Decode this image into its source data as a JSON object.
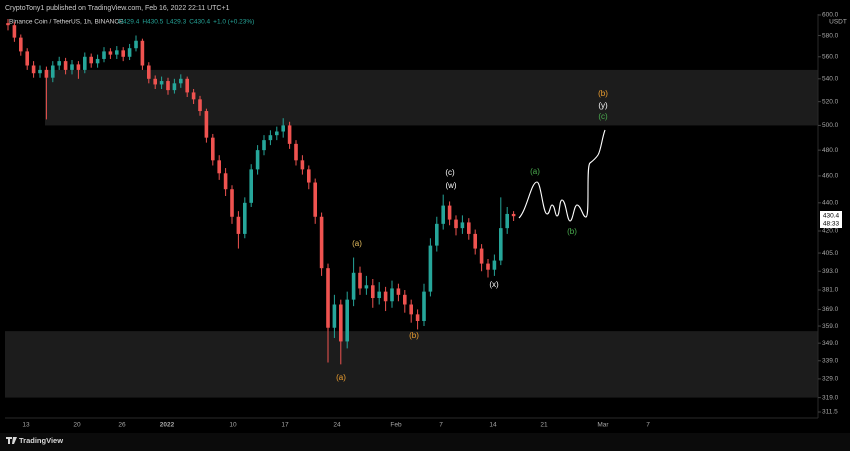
{
  "header": {
    "publisher": "CryptoTony1 published on TradingView.com, Feb 16, 2022 22:11 UTC+1"
  },
  "footer": {
    "brand": "TradingView"
  },
  "chart_data": {
    "type": "candlestick",
    "title": "Binance Coin / TetherUS, 1h, BINANCE",
    "legend_values": [
      "O429.4",
      "H430.5",
      "L429.3",
      "C430.4",
      "+1.0 (+0.23%)"
    ],
    "legend_color": "#26a69a",
    "currency": "USDT",
    "countdown": "48:33",
    "up_color": "#26a69a",
    "down_color": "#ef5350",
    "log_scale": true,
    "ylim": [
      311.5,
      600
    ],
    "yticks": [
      {
        "value": 600,
        "label": "600.0"
      },
      {
        "value": 580,
        "label": "580.0"
      },
      {
        "value": 560,
        "label": "560.0"
      },
      {
        "value": 540,
        "label": "540.0"
      },
      {
        "value": 520,
        "label": "520.0"
      },
      {
        "value": 500,
        "label": "500.0"
      },
      {
        "value": 480,
        "label": "480.0"
      },
      {
        "value": 460,
        "label": "460.0"
      },
      {
        "value": 440,
        "label": "440.0"
      },
      {
        "value": 420,
        "label": "420.0"
      },
      {
        "value": 405,
        "label": "405.0"
      },
      {
        "value": 393,
        "label": "393.0"
      },
      {
        "value": 381,
        "label": "381.0"
      },
      {
        "value": 369,
        "label": "369.0"
      },
      {
        "value": 359,
        "label": "359.0"
      },
      {
        "value": 349,
        "label": "349.0"
      },
      {
        "value": 339,
        "label": "339.0"
      },
      {
        "value": 329,
        "label": "329.0"
      },
      {
        "value": 319,
        "label": "319.0"
      },
      {
        "value": 311.5,
        "label": "311.5"
      }
    ],
    "xlabels": [
      "13",
      "20",
      "26",
      "2022",
      "10",
      "17",
      "24",
      "Feb",
      "7",
      "14",
      "21",
      "Mar",
      "7"
    ],
    "zones": [
      {
        "low": 500,
        "high": 548
      },
      {
        "low": 319,
        "high": 356
      }
    ],
    "open": [
      592,
      590,
      578,
      565,
      552,
      545,
      548,
      541,
      552,
      556,
      548,
      553,
      548,
      560,
      554,
      558,
      565,
      562,
      566,
      560,
      568,
      575,
      552,
      540,
      535,
      538,
      530,
      536,
      540,
      528,
      522,
      512,
      490,
      472,
      462,
      450,
      430,
      418,
      440,
      465,
      480,
      488,
      492,
      495,
      500,
      485,
      472,
      465,
      455,
      430,
      395,
      358,
      372,
      350,
      375,
      392,
      382,
      384,
      376,
      380,
      374,
      382,
      378,
      372,
      366,
      362,
      380,
      410,
      425,
      438,
      428,
      422,
      426,
      418,
      408,
      398,
      394,
      400,
      422,
      432
    ],
    "high": [
      596,
      593,
      581,
      568,
      556,
      552,
      551,
      556,
      560,
      559,
      557,
      556,
      564,
      563,
      562,
      569,
      568,
      570,
      569,
      572,
      580,
      577,
      555,
      543,
      542,
      541,
      540,
      544,
      542,
      531,
      525,
      514,
      493,
      476,
      466,
      453,
      434,
      444,
      469,
      484,
      492,
      496,
      499,
      506,
      503,
      488,
      476,
      468,
      458,
      433,
      398,
      378,
      375,
      380,
      402,
      396,
      390,
      388,
      386,
      383,
      387,
      385,
      381,
      375,
      369,
      385,
      415,
      430,
      446,
      441,
      431,
      431,
      429,
      421,
      411,
      401,
      404,
      444,
      437,
      434
    ],
    "low": [
      585,
      574,
      561,
      548,
      541,
      541,
      505,
      537,
      548,
      544,
      544,
      540,
      545,
      550,
      550,
      555,
      558,
      558,
      556,
      557,
      565,
      548,
      536,
      531,
      531,
      526,
      527,
      532,
      524,
      518,
      508,
      486,
      468,
      457,
      445,
      425,
      408,
      415,
      437,
      461,
      476,
      484,
      488,
      490,
      481,
      468,
      461,
      450,
      425,
      390,
      338,
      352,
      337,
      346,
      371,
      378,
      378,
      370,
      372,
      368,
      370,
      374,
      367,
      361,
      357,
      359,
      377,
      406,
      421,
      424,
      417,
      418,
      414,
      404,
      393,
      389,
      390,
      397,
      418,
      427
    ],
    "close": [
      590,
      578,
      565,
      552,
      545,
      548,
      541,
      552,
      556,
      548,
      553,
      548,
      560,
      554,
      558,
      565,
      562,
      566,
      560,
      568,
      575,
      552,
      540,
      535,
      538,
      530,
      536,
      540,
      528,
      522,
      512,
      490,
      472,
      462,
      450,
      430,
      418,
      440,
      465,
      480,
      488,
      492,
      495,
      500,
      485,
      472,
      465,
      455,
      430,
      395,
      358,
      372,
      350,
      375,
      392,
      382,
      384,
      376,
      380,
      374,
      382,
      378,
      372,
      366,
      362,
      380,
      410,
      425,
      438,
      428,
      422,
      426,
      418,
      408,
      398,
      394,
      400,
      422,
      432,
      430.4
    ],
    "annotations": [
      {
        "text": "(a)",
        "color": "#f0a030"
      },
      {
        "text": "(a)",
        "color": "#e8c060"
      },
      {
        "text": "(b)",
        "color": "#f0a030"
      },
      {
        "text": "(c)",
        "color": "#ffffff"
      },
      {
        "text": "(w)",
        "color": "#ffffff"
      },
      {
        "text": "(x)",
        "color": "#ffffff"
      },
      {
        "text": "(a)",
        "color": "#4caf50"
      },
      {
        "text": "(b)",
        "color": "#4caf50"
      },
      {
        "text": "(b)",
        "color": "#f0a030"
      },
      {
        "text": "(y)",
        "color": "#ffffff"
      },
      {
        "text": "(c)",
        "color": "#4caf50"
      }
    ]
  }
}
